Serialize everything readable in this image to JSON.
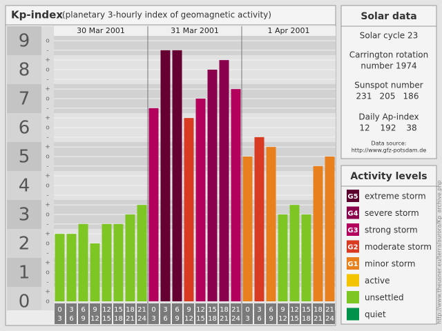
{
  "chart_data": {
    "type": "bar",
    "title": "Kp-index",
    "subtitle": "(planetary 3-hourly index of geomagnetic activity)",
    "days": [
      "30 Mar 2001",
      "31 Mar 2001",
      "1 Apr 2001"
    ],
    "hour_from": [
      0,
      3,
      6,
      9,
      12,
      15,
      18,
      21,
      0,
      3,
      6,
      9,
      12,
      15,
      18,
      21,
      0,
      3,
      6,
      9,
      12,
      15,
      18,
      21
    ],
    "hour_to": [
      3,
      6,
      9,
      12,
      15,
      18,
      21,
      24,
      3,
      6,
      9,
      12,
      15,
      18,
      21,
      24,
      3,
      6,
      9,
      12,
      15,
      18,
      21,
      24
    ],
    "values": [
      2.33,
      2.33,
      2.67,
      2,
      2.67,
      2.67,
      3,
      3.33,
      6.67,
      8.67,
      8.67,
      6.33,
      7,
      8,
      8.33,
      7.33,
      5,
      5.67,
      5.33,
      3,
      3.33,
      3,
      4.67,
      5
    ],
    "colors": [
      "#7dc623",
      "#7dc623",
      "#7dc623",
      "#7dc623",
      "#7dc623",
      "#7dc623",
      "#7dc623",
      "#7dc623",
      "#b2005c",
      "#660033",
      "#660033",
      "#d83a22",
      "#b2005c",
      "#8a004c",
      "#8a004c",
      "#b2005c",
      "#e8801e",
      "#d83a22",
      "#e8801e",
      "#7dc623",
      "#7dc623",
      "#7dc623",
      "#e8801e",
      "#e8801e"
    ],
    "ylim": [
      0,
      9.5
    ],
    "yticks": [
      0,
      1,
      2,
      3,
      4,
      5,
      6,
      7,
      8,
      9
    ],
    "minor_ticks": [
      {
        "value": 0,
        "label": "o"
      },
      {
        "value": 0.33,
        "label": "+"
      },
      {
        "value": 0.67,
        "label": "-"
      },
      {
        "value": 1,
        "label": "o"
      },
      {
        "value": 1.33,
        "label": "+"
      },
      {
        "value": 1.67,
        "label": "-"
      },
      {
        "value": 2,
        "label": "o"
      },
      {
        "value": 2.33,
        "label": "+"
      },
      {
        "value": 2.67,
        "label": "-"
      },
      {
        "value": 3,
        "label": "o"
      },
      {
        "value": 3.33,
        "label": "+"
      },
      {
        "value": 3.67,
        "label": "-"
      },
      {
        "value": 4,
        "label": "o"
      },
      {
        "value": 4.33,
        "label": "+"
      },
      {
        "value": 4.67,
        "label": "-"
      },
      {
        "value": 5,
        "label": "o"
      },
      {
        "value": 5.33,
        "label": "+"
      },
      {
        "value": 5.67,
        "label": "-"
      },
      {
        "value": 6,
        "label": "o"
      },
      {
        "value": 6.33,
        "label": "+"
      },
      {
        "value": 6.67,
        "label": "-"
      },
      {
        "value": 7,
        "label": "o"
      },
      {
        "value": 7.33,
        "label": "+"
      },
      {
        "value": 7.67,
        "label": "-"
      },
      {
        "value": 8,
        "label": "o"
      },
      {
        "value": 8.33,
        "label": "+"
      },
      {
        "value": 8.67,
        "label": "-"
      },
      {
        "value": 9,
        "label": "o"
      }
    ]
  },
  "solar_data": {
    "title": "Solar data",
    "cycle": "Solar cycle 23",
    "carrington_1": "Carrington rotation",
    "carrington_2": "number 1974",
    "sunspot_title": "Sunspot number",
    "sunspot": [
      231,
      205,
      186
    ],
    "ap_title": "Daily Ap-index",
    "ap": [
      12,
      192,
      38
    ],
    "source_title": "Data source:",
    "source_url": "http://www.gfz-potsdam.de"
  },
  "activity_levels": {
    "title": "Activity levels",
    "items": [
      {
        "badge": "G5",
        "label": "extreme storm",
        "color": "#5c002e"
      },
      {
        "badge": "G4",
        "label": "severe storm",
        "color": "#8a004c"
      },
      {
        "badge": "G3",
        "label": "strong storm",
        "color": "#b2005c"
      },
      {
        "badge": "G2",
        "label": "moderate storm",
        "color": "#d83a22"
      },
      {
        "badge": "G1",
        "label": "minor storm",
        "color": "#e8801e"
      },
      {
        "label": "active",
        "color": "#f5c400"
      },
      {
        "label": "unsettled",
        "color": "#7dc623"
      },
      {
        "label": "quiet",
        "color": "#00924a"
      }
    ]
  },
  "credit": "http://www.theusner.eu/terra/aurora/Kp_archive.php"
}
